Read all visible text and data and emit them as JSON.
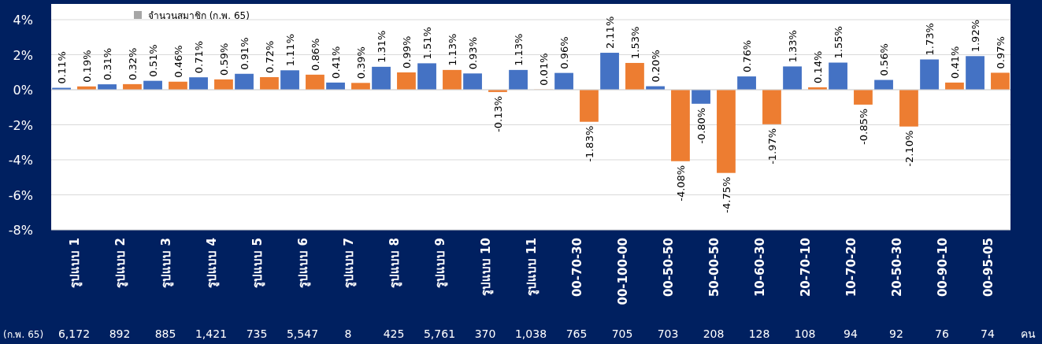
{
  "chart_data": {
    "type": "bar",
    "categories": [
      "รูปแบบ 1",
      "รูปแบบ 2",
      "รูปแบบ 3",
      "รูปแบบ 4",
      "รูปแบบ 5",
      "รูปแบบ 6",
      "รูปแบบ 7",
      "รูปแบบ 8",
      "รูปแบบ 9",
      "รูปแบบ 10",
      "รูปแบบ 11",
      "00-70-30",
      "00-100-00",
      "00-50-50",
      "50-00-50",
      "10-60-30",
      "20-70-10",
      "10-70-20",
      "20-50-30",
      "00-90-10",
      "00-95-05"
    ],
    "series": [
      {
        "color": "#4472c4",
        "values": [
          0.11,
          0.31,
          0.51,
          0.71,
          0.91,
          1.11,
          0.41,
          1.31,
          1.51,
          0.93,
          1.13,
          0.96,
          2.11,
          0.2,
          -0.8,
          0.76,
          1.33,
          1.55,
          0.56,
          1.73,
          1.92
        ],
        "value_labels": [
          "0.11%",
          "0.31%",
          "0.51%",
          "0.71%",
          "0.91%",
          "1.11%",
          "0.41%",
          "1.31%",
          "1.51%",
          "0.93%",
          "1.13%",
          "0.96%",
          "2.11%",
          "0.20%",
          "-0.80%",
          "0.76%",
          "1.33%",
          "1.55%",
          "0.56%",
          "1.73%",
          "1.92%"
        ]
      },
      {
        "color": "#ed7d31",
        "values": [
          0.19,
          0.32,
          0.46,
          0.59,
          0.72,
          0.86,
          0.39,
          0.99,
          1.13,
          -0.13,
          0.01,
          -1.83,
          1.53,
          -4.08,
          -4.75,
          -1.97,
          0.14,
          -0.85,
          -2.1,
          0.41,
          0.97
        ],
        "value_labels": [
          "0.19%",
          "0.32%",
          "0.46%",
          "0.59%",
          "0.72%",
          "0.86%",
          "0.39%",
          "0.99%",
          "1.13%",
          "-0.13%",
          "0.01%",
          "-1.83%",
          "1.53%",
          "-4.08%",
          "-4.75%",
          "-1.97%",
          "0.14%",
          "-0.85%",
          "-2.10%",
          "0.41%",
          "0.97%"
        ]
      }
    ],
    "ylim": [
      -8,
      4
    ],
    "yticks": [
      {
        "value": -8,
        "label": "-8%"
      },
      {
        "value": -6,
        "label": "-6%"
      },
      {
        "value": -4,
        "label": "-4%"
      },
      {
        "value": -2,
        "label": "-2%"
      },
      {
        "value": 0,
        "label": "0%"
      },
      {
        "value": 2,
        "label": "2%"
      },
      {
        "value": 4,
        "label": "4%"
      }
    ],
    "grid": "y",
    "legend_title": "จำนวนสมาชิก (ก.พ. 65)",
    "annotations": [
      "(ก.พ. 65)",
      "6,172",
      "892",
      "885",
      "1,421",
      "735",
      "5,547",
      "8",
      "425",
      "5,761",
      "370",
      "1,038",
      "765",
      "705",
      "703",
      "208",
      "128",
      "108",
      "94",
      "92",
      "76",
      "74",
      "คน"
    ]
  }
}
